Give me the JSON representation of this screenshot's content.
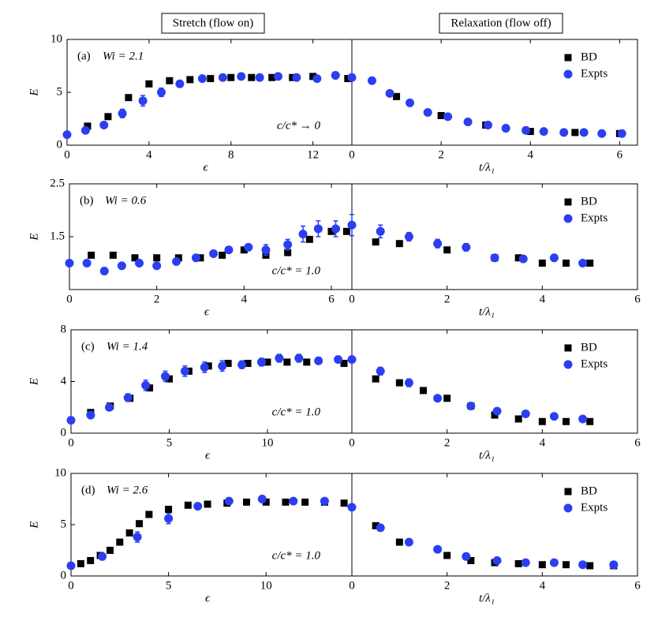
{
  "column_titles": [
    "Stretch (flow on)",
    "Relaxation (flow off)"
  ],
  "chart_data": [
    {
      "type": "scatter",
      "panel_label": "(a)",
      "subtitle": "Wi = 2.1",
      "annotation": "c/c* → 0",
      "x_label": "ϵ",
      "y_label": "E",
      "xlim": [
        0,
        13.9
      ],
      "xticks": [
        0,
        4,
        8,
        12
      ],
      "ylim": [
        0,
        10
      ],
      "yticks": [
        0,
        5,
        10
      ],
      "legend": false,
      "series": [
        {
          "name": "BD",
          "color": "#000000",
          "marker": "square",
          "x": [
            1,
            2,
            3,
            4,
            5,
            6,
            7,
            8,
            9,
            10,
            11,
            12,
            13.7
          ],
          "values": [
            1.8,
            2.7,
            4.5,
            5.8,
            6.1,
            6.2,
            6.3,
            6.4,
            6.4,
            6.4,
            6.4,
            6.5,
            6.3
          ]
        },
        {
          "name": "Expts",
          "color": "#2b3ff0",
          "marker": "circle",
          "x": [
            0,
            0.9,
            1.8,
            2.7,
            3.7,
            4.6,
            5.5,
            6.6,
            7.6,
            8.5,
            9.4,
            10.3,
            11.2,
            12.2,
            13.1
          ],
          "values": [
            1.0,
            1.4,
            1.9,
            3.0,
            4.2,
            5.0,
            5.8,
            6.3,
            6.4,
            6.5,
            6.4,
            6.5,
            6.4,
            6.3,
            6.6
          ],
          "errors": [
            null,
            null,
            null,
            0.4,
            0.5,
            0.4,
            null,
            null,
            null,
            null,
            null,
            null,
            null,
            null,
            null
          ]
        }
      ]
    },
    {
      "type": "scatter",
      "x_label": "t/λ₁",
      "xlim": [
        0,
        6.4
      ],
      "xticks": [
        0,
        2,
        4,
        6
      ],
      "ylim": [
        0,
        10
      ],
      "legend": true,
      "series": [
        {
          "name": "BD",
          "color": "#000000",
          "marker": "square",
          "x": [
            1,
            2,
            3,
            4,
            5,
            6
          ],
          "values": [
            4.6,
            2.8,
            1.9,
            1.3,
            1.2,
            1.1
          ]
        },
        {
          "name": "Expts",
          "color": "#2b3ff0",
          "marker": "circle",
          "x": [
            0,
            0.45,
            0.85,
            1.3,
            1.7,
            2.15,
            2.6,
            3.05,
            3.45,
            3.9,
            4.3,
            4.75,
            5.2,
            5.6,
            6.05
          ],
          "values": [
            6.4,
            6.1,
            4.9,
            4.0,
            3.1,
            2.7,
            2.2,
            1.9,
            1.6,
            1.4,
            1.3,
            1.2,
            1.2,
            1.1,
            1.1
          ]
        }
      ]
    },
    {
      "type": "scatter",
      "panel_label": "(b)",
      "subtitle": "Wi = 0.6",
      "annotation": "c/c* = 1.0",
      "x_label": "ϵ",
      "y_label": "E",
      "xlim": [
        0,
        6.47
      ],
      "xticks": [
        0,
        2,
        4,
        6
      ],
      "ylim": [
        0.5,
        2.5
      ],
      "yticks": [
        1.5,
        2.5
      ],
      "legend": false,
      "series": [
        {
          "name": "BD",
          "color": "#000000",
          "marker": "square",
          "x": [
            0.5,
            1,
            1.5,
            2,
            2.5,
            3,
            3.5,
            4,
            4.5,
            5,
            5.5,
            6,
            6.35
          ],
          "values": [
            1.15,
            1.15,
            1.1,
            1.1,
            1.1,
            1.1,
            1.15,
            1.25,
            1.15,
            1.2,
            1.45,
            1.6,
            1.6
          ]
        },
        {
          "name": "Expts",
          "color": "#2b3ff0",
          "marker": "circle",
          "x": [
            0,
            0.4,
            0.8,
            1.2,
            1.6,
            2,
            2.45,
            2.9,
            3.3,
            3.65,
            4.1,
            4.5,
            5,
            5.35,
            5.7,
            6.1
          ],
          "values": [
            1.0,
            1.0,
            0.85,
            0.95,
            1.0,
            0.95,
            1.03,
            1.1,
            1.18,
            1.25,
            1.3,
            1.25,
            1.35,
            1.55,
            1.65,
            1.65
          ],
          "errors": [
            null,
            null,
            null,
            null,
            null,
            null,
            null,
            null,
            null,
            0.05,
            0.06,
            0.1,
            0.1,
            0.15,
            0.15,
            0.15
          ]
        }
      ]
    },
    {
      "type": "scatter",
      "x_label": "t/λ₁",
      "xlim": [
        0,
        6
      ],
      "xticks": [
        0,
        2,
        4,
        6
      ],
      "ylim": [
        0.5,
        2.5
      ],
      "legend": true,
      "series": [
        {
          "name": "BD",
          "color": "#000000",
          "marker": "square",
          "x": [
            0.5,
            1,
            2,
            3,
            3.5,
            4,
            4.5,
            5
          ],
          "values": [
            1.4,
            1.37,
            1.25,
            1.1,
            1.1,
            1.0,
            1.0,
            1.0
          ]
        },
        {
          "name": "Expts",
          "color": "#2b3ff0",
          "marker": "circle",
          "x": [
            0,
            0.6,
            1.2,
            1.8,
            2.4,
            3,
            3.6,
            4.25,
            4.85
          ],
          "values": [
            1.72,
            1.6,
            1.5,
            1.37,
            1.3,
            1.1,
            1.08,
            1.1,
            1.0
          ],
          "errors": [
            0.2,
            0.12,
            0.08,
            0.08,
            0.07,
            null,
            null,
            null,
            null
          ]
        }
      ]
    },
    {
      "type": "scatter",
      "panel_label": "(c)",
      "subtitle": "Wi = 1.4",
      "annotation": "c/c* = 1.0",
      "x_label": "ϵ",
      "y_label": "E",
      "xlim": [
        0,
        14.3
      ],
      "xticks": [
        0,
        5,
        10
      ],
      "ylim": [
        0,
        8
      ],
      "yticks": [
        0,
        4,
        8
      ],
      "legend": false,
      "series": [
        {
          "name": "BD",
          "color": "#000000",
          "marker": "square",
          "x": [
            1,
            2,
            3,
            4,
            5,
            6,
            7,
            8,
            9,
            10,
            11,
            12,
            13.9
          ],
          "values": [
            1.6,
            2.1,
            2.7,
            3.5,
            4.2,
            4.8,
            5.2,
            5.4,
            5.4,
            5.5,
            5.5,
            5.5,
            5.4
          ]
        },
        {
          "name": "Expts",
          "color": "#2b3ff0",
          "marker": "circle",
          "x": [
            0,
            1,
            1.95,
            2.9,
            3.8,
            4.8,
            5.8,
            6.8,
            7.7,
            8.7,
            9.7,
            10.6,
            11.6,
            12.6,
            13.6
          ],
          "values": [
            1.0,
            1.4,
            2.0,
            2.75,
            3.7,
            4.4,
            4.8,
            5.1,
            5.2,
            5.3,
            5.5,
            5.8,
            5.8,
            5.6,
            5.7
          ],
          "errors": [
            null,
            null,
            null,
            0.3,
            0.4,
            0.4,
            0.4,
            0.4,
            0.4,
            0.3,
            0.3,
            0.3,
            0.3,
            null,
            null
          ]
        }
      ]
    },
    {
      "type": "scatter",
      "x_label": "t/λ₁",
      "xlim": [
        0,
        6
      ],
      "xticks": [
        0,
        2,
        4,
        6
      ],
      "ylim": [
        0,
        8
      ],
      "legend": true,
      "series": [
        {
          "name": "BD",
          "color": "#000000",
          "marker": "square",
          "x": [
            0.5,
            1,
            1.5,
            2,
            2.5,
            3,
            3.5,
            4,
            4.5,
            5
          ],
          "values": [
            4.2,
            3.9,
            3.3,
            2.7,
            2.1,
            1.4,
            1.1,
            0.9,
            0.9,
            0.9
          ]
        },
        {
          "name": "Expts",
          "color": "#2b3ff0",
          "marker": "circle",
          "x": [
            0,
            0.6,
            1.2,
            1.8,
            2.5,
            3.05,
            3.65,
            4.25,
            4.85
          ],
          "values": [
            5.7,
            4.8,
            3.9,
            2.7,
            2.1,
            1.7,
            1.5,
            1.3,
            1.1
          ],
          "errors": [
            null,
            0.3,
            0.3,
            null,
            null,
            null,
            null,
            null,
            null
          ]
        }
      ]
    },
    {
      "type": "scatter",
      "panel_label": "(d)",
      "subtitle": "Wi = 2.6",
      "annotation": "c/c* = 1.0",
      "x_label": "ϵ",
      "y_label": "E",
      "xlim": [
        0,
        14.4
      ],
      "xticks": [
        0,
        5,
        10
      ],
      "ylim": [
        0,
        10
      ],
      "yticks": [
        0,
        5,
        10
      ],
      "legend": false,
      "series": [
        {
          "name": "BD",
          "color": "#000000",
          "marker": "square",
          "x": [
            0.5,
            1,
            1.5,
            2,
            2.5,
            3,
            3.5,
            4,
            5,
            6,
            7,
            8,
            9,
            10,
            11,
            12,
            13,
            14
          ],
          "values": [
            1.2,
            1.5,
            2.0,
            2.5,
            3.3,
            4.2,
            5.1,
            6.0,
            6.5,
            6.9,
            7.0,
            7.1,
            7.2,
            7.2,
            7.2,
            7.2,
            7.2,
            7.1
          ]
        },
        {
          "name": "Expts",
          "color": "#2b3ff0",
          "marker": "circle",
          "x": [
            0,
            1.6,
            3.4,
            5,
            6.5,
            8.1,
            9.8,
            11.4,
            13
          ],
          "values": [
            1.0,
            1.9,
            3.8,
            5.6,
            6.8,
            7.3,
            7.5,
            7.3,
            7.3
          ],
          "errors": [
            null,
            null,
            0.5,
            0.5,
            null,
            null,
            null,
            null,
            null
          ]
        }
      ]
    },
    {
      "type": "scatter",
      "x_label": "t/λ₁",
      "xlim": [
        0,
        6
      ],
      "xticks": [
        0,
        2,
        4,
        6
      ],
      "ylim": [
        0,
        10
      ],
      "legend": true,
      "series": [
        {
          "name": "BD",
          "color": "#000000",
          "marker": "square",
          "x": [
            0.5,
            1,
            2,
            2.5,
            3,
            3.5,
            4,
            4.5,
            5,
            5.5
          ],
          "values": [
            4.9,
            3.3,
            2.0,
            1.5,
            1.3,
            1.2,
            1.1,
            1.1,
            1.0,
            1.0
          ]
        },
        {
          "name": "Expts",
          "color": "#2b3ff0",
          "marker": "circle",
          "x": [
            0,
            0.6,
            1.2,
            1.8,
            2.4,
            3.05,
            3.65,
            4.25,
            4.85,
            5.5
          ],
          "values": [
            6.7,
            4.7,
            3.3,
            2.6,
            1.9,
            1.5,
            1.3,
            1.3,
            1.1,
            1.1
          ]
        }
      ]
    }
  ]
}
